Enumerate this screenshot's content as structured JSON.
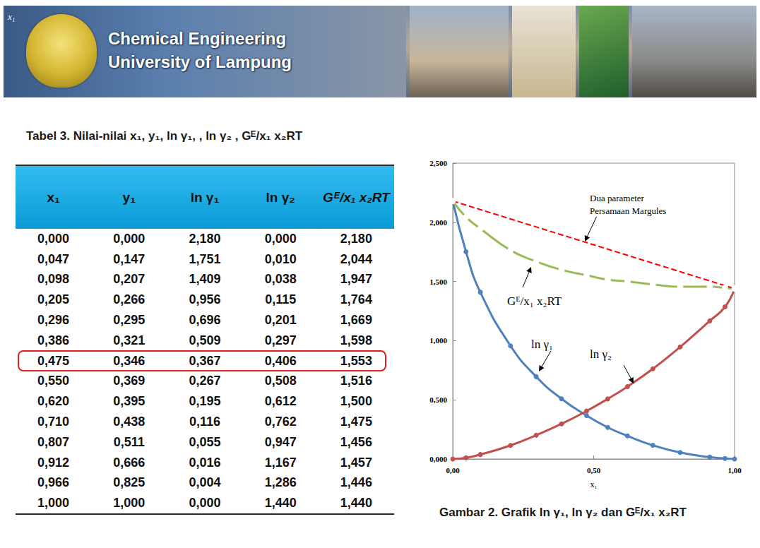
{
  "header": {
    "corner_text": "x₁",
    "line1": "Chemical Engineering",
    "line2": "University of Lampung"
  },
  "table": {
    "title": "Tabel 3. Nilai-nilai x₁, y₁, ln γ₁, , ln γ₂ , Gᴱ/x₁ x₂RT",
    "columns": [
      "x₁",
      "y₁",
      "ln γ₁",
      "ln γ₂",
      "Gᴱ/x₁ x₂RT"
    ],
    "rows": [
      [
        "0,000",
        "0,000",
        "2,180",
        "0,000",
        "2,180"
      ],
      [
        "0,047",
        "0,147",
        "1,751",
        "0,010",
        "2,044"
      ],
      [
        "0,098",
        "0,207",
        "1,409",
        "0,038",
        "1,947"
      ],
      [
        "0,205",
        "0,266",
        "0,956",
        "0,115",
        "1,764"
      ],
      [
        "0,296",
        "0,295",
        "0,696",
        "0,201",
        "1,669"
      ],
      [
        "0,386",
        "0,321",
        "0,509",
        "0,297",
        "1,598"
      ],
      [
        "0,475",
        "0,346",
        "0,367",
        "0,406",
        "1,553"
      ],
      [
        "0,550",
        "0,369",
        "0,267",
        "0,508",
        "1,516"
      ],
      [
        "0,620",
        "0,395",
        "0,195",
        "0,612",
        "1,500"
      ],
      [
        "0,710",
        "0,438",
        "0,116",
        "0,762",
        "1,475"
      ],
      [
        "0,807",
        "0,511",
        "0,055",
        "0,947",
        "1,456"
      ],
      [
        "0,912",
        "0,666",
        "0,016",
        "1,167",
        "1,457"
      ],
      [
        "0,966",
        "0,825",
        "0,004",
        "1,286",
        "1,446"
      ],
      [
        "1,000",
        "1,000",
        "0,000",
        "1,440",
        "1,440"
      ]
    ],
    "highlight_row": 6
  },
  "chart_data": {
    "type": "line",
    "caption": "Gambar 2. Grafik ln γ₁, ln γ₂ dan Gᴱ/x₁ x₂RT",
    "x_label": "x₁",
    "x": [
      0.0,
      0.047,
      0.098,
      0.205,
      0.296,
      0.386,
      0.475,
      0.55,
      0.62,
      0.71,
      0.807,
      0.912,
      0.966,
      1.0
    ],
    "series": [
      {
        "name": "ln γ₁",
        "color": "#4f81bd",
        "marker": "circle",
        "line_style": "solid",
        "values": [
          2.18,
          1.751,
          1.409,
          0.956,
          0.696,
          0.509,
          0.367,
          0.267,
          0.195,
          0.116,
          0.055,
          0.016,
          0.004,
          0.0
        ]
      },
      {
        "name": "ln γ₂",
        "color": "#c0504d",
        "marker": "circle",
        "line_style": "solid",
        "values": [
          0.0,
          0.01,
          0.038,
          0.115,
          0.201,
          0.297,
          0.406,
          0.508,
          0.612,
          0.762,
          0.947,
          1.167,
          1.286,
          1.44
        ]
      },
      {
        "name": "Gᴱ/x₁ x₂RT",
        "color": "#9bbb59",
        "marker": "open_circle",
        "line_style": "solid",
        "values": [
          2.18,
          2.044,
          1.947,
          1.764,
          1.669,
          1.598,
          1.553,
          1.516,
          1.5,
          1.475,
          1.456,
          1.457,
          1.446,
          1.44
        ]
      },
      {
        "name": "Dua parameter Persamaan Margules",
        "color": "#ff0000",
        "marker": "none",
        "line_style": "dashed",
        "x": [
          0.0,
          1.0
        ],
        "values": [
          2.18,
          1.44
        ]
      }
    ],
    "xlim": [
      0,
      1
    ],
    "xticks": [
      {
        "value": 0,
        "label": "0,00"
      },
      {
        "value": 0.5,
        "label": "0,50"
      },
      {
        "value": 1,
        "label": "1,00"
      }
    ],
    "ylim": [
      0,
      2.5
    ],
    "yticks": [
      {
        "value": 0,
        "label": "0,000"
      },
      {
        "value": 0.5,
        "label": "0,500"
      },
      {
        "value": 1,
        "label": "1,000"
      },
      {
        "value": 1.5,
        "label": "1,500"
      },
      {
        "value": 2,
        "label": "2,000"
      },
      {
        "value": 2.5,
        "label": "2,500"
      }
    ],
    "grid": false,
    "legend": false
  }
}
